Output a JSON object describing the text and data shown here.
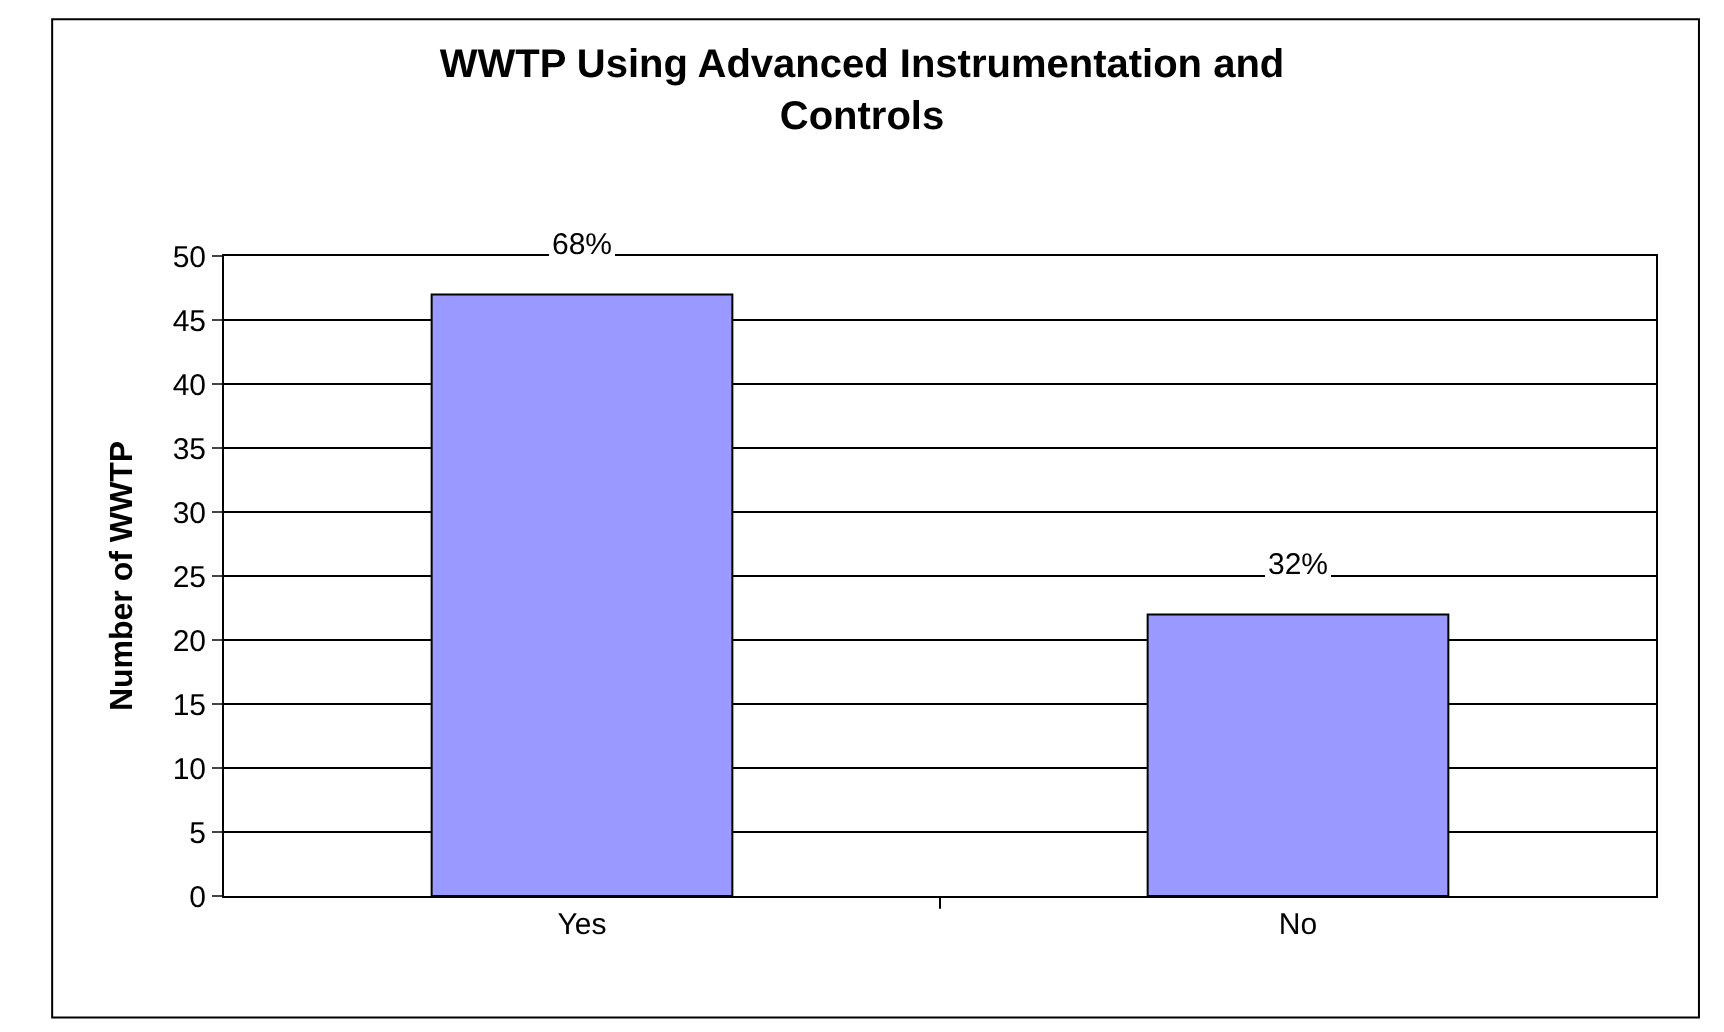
{
  "chart_data": {
    "type": "bar",
    "title": "WWTP Using Advanced Instrumentation and Controls",
    "ylabel": "Number of WWTP",
    "categories": [
      "Yes",
      "No"
    ],
    "values": [
      47,
      22
    ],
    "color": "#9999ff",
    "annotations": [
      {
        "text": "68%",
        "x": "Yes",
        "y": 47
      },
      {
        "text": "32%",
        "x": "No",
        "y": 22
      }
    ],
    "ylim": [
      0,
      50
    ],
    "yticks": [
      0,
      5,
      10,
      15,
      20,
      25,
      30,
      35,
      40,
      45,
      50
    ],
    "grid": "y",
    "legend": false
  }
}
